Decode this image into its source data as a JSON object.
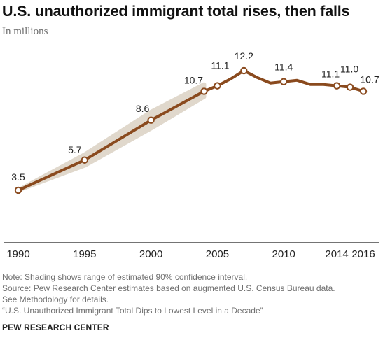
{
  "header": {
    "title": "U.S. unauthorized immigrant total rises, then falls",
    "subtitle": "In millions"
  },
  "notes": {
    "note": "Note: Shading shows range of estimated 90% confidence interval.",
    "source_line1": "Source: Pew Research Center estimates based on augmented U.S. Census Bureau data.",
    "source_line2": "See Methodology for details.",
    "report": "“U.S. Unauthorized Immigrant Total Dips to Lowest Level in a Decade”"
  },
  "brand": "PEW RESEARCH CENTER",
  "colors": {
    "line": "#8a4a1e",
    "band": "#e0d8cc",
    "marker_fill": "#ffffff",
    "axis": "#222222"
  },
  "chart_data": {
    "type": "line",
    "title": "U.S. unauthorized immigrant total rises, then falls",
    "subtitle": "In millions",
    "xlim": [
      1990,
      2016
    ],
    "ylim": [
      0,
      13
    ],
    "x_ticks": [
      "1990",
      "1995",
      "2000",
      "2005",
      "2010",
      "2014",
      "2016"
    ],
    "x_tick_values": [
      1990,
      1995,
      2000,
      2005,
      2010,
      2014,
      2016
    ],
    "grid": false,
    "series": [
      {
        "x": [
          1990,
          1995,
          2000,
          2004,
          2005,
          2006,
          2007,
          2008,
          2009,
          2010,
          2011,
          2012,
          2013,
          2014,
          2015,
          2016
        ],
        "values": [
          3.5,
          5.7,
          8.6,
          10.7,
          11.1,
          11.6,
          12.2,
          11.7,
          11.3,
          11.4,
          11.5,
          11.2,
          11.2,
          11.1,
          11.0,
          10.7
        ],
        "markers": [
          1990,
          1995,
          2000,
          2004,
          2005,
          2007,
          2010,
          2014,
          2015,
          2016
        ]
      }
    ],
    "confidence_band": {
      "x": [
        1990,
        1995,
        2000,
        2004
      ],
      "low": [
        3.5,
        5.3,
        8.0,
        10.3
      ],
      "high": [
        3.5,
        6.1,
        9.2,
        11.2
      ]
    },
    "data_labels": [
      {
        "x": 1990,
        "text": "3.5"
      },
      {
        "x": 1995,
        "text": "5.7"
      },
      {
        "x": 2000,
        "text": "8.6"
      },
      {
        "x": 2004,
        "text": "10.7"
      },
      {
        "x": 2005,
        "text": "11.1"
      },
      {
        "x": 2007,
        "text": "12.2"
      },
      {
        "x": 2010,
        "text": "11.4"
      },
      {
        "x": 2014,
        "text": "11.1"
      },
      {
        "x": 2015,
        "text": "11.0"
      },
      {
        "x": 2016,
        "text": "10.7"
      }
    ]
  }
}
